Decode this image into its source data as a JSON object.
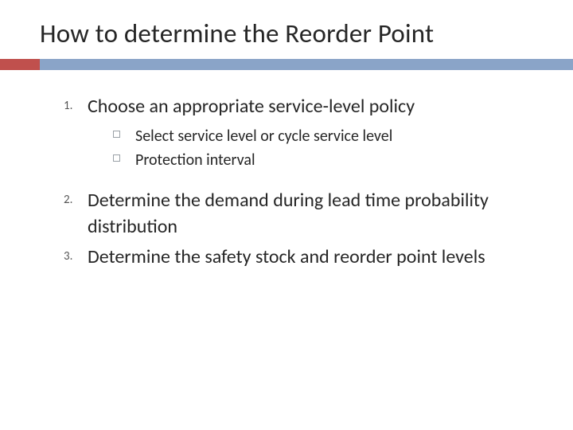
{
  "colors": {
    "background": "#ffffff",
    "title_text": "#262626",
    "body_text": "#262626",
    "divider_bar": "#8aa4c8",
    "divider_accent": "#c0504d",
    "sub_marker_border": "#9aa0a6",
    "ol_marker": "#555555"
  },
  "typography": {
    "title_fontsize": 33,
    "ol_fontsize": 24,
    "sub_fontsize": 20,
    "ol_marker_fontsize": 15,
    "font_family": "Gill Sans"
  },
  "title": "How to determine the Reorder Point",
  "items": [
    {
      "marker": "1.",
      "text": "Choose an appropriate service-level policy",
      "sub": [
        {
          "text": "Select service level or cycle service level"
        },
        {
          "text": "Protection interval"
        }
      ]
    },
    {
      "marker": "2.",
      "text": "Determine the demand during lead time probability distribution",
      "sub": []
    },
    {
      "marker": "3.",
      "text": "Determine the safety stock and reorder point levels",
      "sub": []
    }
  ]
}
